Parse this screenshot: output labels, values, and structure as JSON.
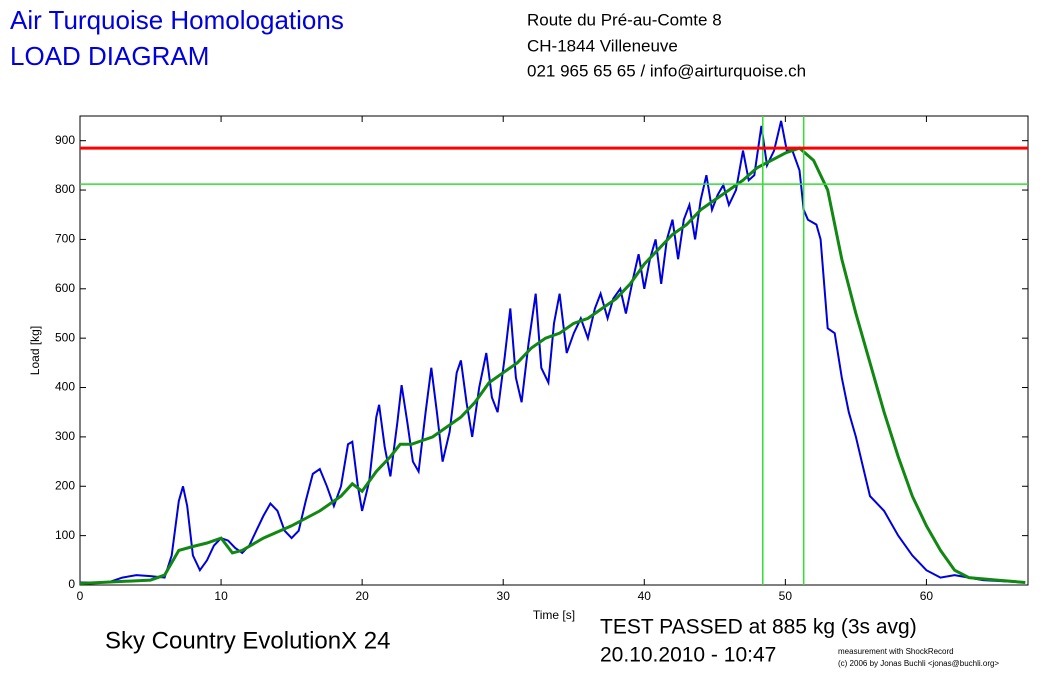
{
  "header": {
    "title": [
      "Air Turquoise Homologations",
      "LOAD DIAGRAM"
    ],
    "address": [
      "Route du Pré-au-Comte 8",
      "CH-1844 Villeneuve",
      "021 965 65 65 / info@airturquoise.ch"
    ]
  },
  "footer": {
    "product": "Sky Country EvolutionX 24",
    "result": "TEST PASSED at 885 kg (3s avg)",
    "date": "20.10.2010 - 10:47",
    "credit": [
      "measurement with ShockRecord",
      "(c) 2006 by Jonas Buchli <jonas@buchli.org>"
    ]
  },
  "chart_data": {
    "type": "line",
    "xlabel": "Time [s]",
    "ylabel": "Load [kg]",
    "xlim": [
      0,
      67.2
    ],
    "ylim": [
      0,
      950
    ],
    "xticks": [
      0,
      10,
      20,
      30,
      40,
      50,
      60
    ],
    "yticks": [
      0,
      100,
      200,
      300,
      400,
      500,
      600,
      700,
      800,
      900
    ],
    "grid": false,
    "hlines": [
      {
        "value": 885,
        "color": "#ff0000"
      },
      {
        "value": 812,
        "color": "#33dd33"
      }
    ],
    "vlines": [
      {
        "value": 48.4,
        "color": "#33dd33"
      },
      {
        "value": 51.3,
        "color": "#33dd33"
      }
    ],
    "series": [
      {
        "color": "#0000dd",
        "x": [
          0,
          2,
          3,
          4,
          5,
          6,
          6.5,
          7,
          7.3,
          7.6,
          8,
          8.5,
          9,
          9.5,
          10,
          10.5,
          11,
          11.5,
          12,
          12.5,
          13,
          13.5,
          14,
          14.5,
          15,
          15.5,
          16,
          16.5,
          17,
          17.5,
          18,
          18.5,
          19,
          19.3,
          19.7,
          20,
          20.5,
          21,
          21.2,
          21.6,
          22,
          22.5,
          22.8,
          23.2,
          23.6,
          24,
          24.5,
          24.9,
          25.3,
          25.7,
          26.2,
          26.7,
          27,
          27.4,
          27.8,
          28.3,
          28.8,
          29.2,
          29.6,
          30.1,
          30.5,
          30.9,
          31.3,
          31.8,
          32.3,
          32.7,
          33.2,
          33.6,
          34,
          34.5,
          35,
          35.5,
          36,
          36.5,
          36.9,
          37.4,
          37.8,
          38.3,
          38.7,
          39.2,
          39.6,
          40,
          40.4,
          40.8,
          41.2,
          41.6,
          42,
          42.4,
          42.8,
          43.2,
          43.6,
          44,
          44.4,
          44.8,
          45.2,
          45.6,
          46,
          46.5,
          47,
          47.4,
          47.8,
          48.3,
          48.7,
          49.2,
          49.7,
          50.1,
          50.5,
          51,
          51.3,
          51.6,
          52.2,
          52.5,
          53,
          53.5,
          54,
          54.5,
          55,
          55.5,
          56,
          57,
          58,
          59,
          60,
          61,
          62,
          63,
          64,
          67
        ],
        "values": [
          5,
          5,
          15,
          20,
          18,
          15,
          60,
          170,
          200,
          160,
          60,
          30,
          50,
          80,
          95,
          90,
          75,
          65,
          80,
          110,
          140,
          165,
          150,
          110,
          95,
          110,
          170,
          225,
          235,
          200,
          160,
          200,
          285,
          290,
          200,
          150,
          210,
          340,
          365,
          280,
          220,
          330,
          405,
          330,
          250,
          230,
          350,
          440,
          350,
          250,
          310,
          430,
          455,
          370,
          300,
          400,
          470,
          380,
          350,
          460,
          560,
          420,
          370,
          490,
          590,
          440,
          410,
          530,
          590,
          470,
          510,
          540,
          500,
          560,
          590,
          540,
          580,
          600,
          550,
          620,
          670,
          600,
          660,
          700,
          610,
          700,
          740,
          660,
          740,
          770,
          700,
          780,
          830,
          760,
          790,
          810,
          770,
          800,
          880,
          820,
          830,
          930,
          850,
          880,
          940,
          880,
          880,
          840,
          760,
          740,
          730,
          700,
          520,
          510,
          420,
          350,
          300,
          240,
          180,
          150,
          100,
          60,
          30,
          15,
          20,
          15,
          10,
          5
        ]
      },
      {
        "color": "#118811",
        "x": [
          0,
          5,
          6,
          7,
          8,
          9,
          10,
          10.8,
          11.5,
          13,
          15,
          17,
          18.5,
          19.3,
          20,
          21,
          22,
          22.7,
          23.5,
          25,
          27,
          28,
          29,
          30,
          31,
          32,
          33,
          34,
          35,
          36,
          37,
          38,
          39,
          40,
          41,
          42,
          43,
          44,
          45,
          46,
          47,
          48,
          49,
          50,
          51,
          52,
          53,
          54,
          55,
          56,
          57,
          58,
          59,
          60,
          61,
          62,
          63,
          65,
          67
        ],
        "values": [
          3,
          10,
          20,
          70,
          78,
          85,
          95,
          65,
          70,
          95,
          120,
          150,
          180,
          205,
          190,
          230,
          260,
          285,
          285,
          300,
          340,
          370,
          410,
          430,
          450,
          480,
          500,
          510,
          530,
          540,
          560,
          580,
          610,
          650,
          680,
          710,
          730,
          760,
          780,
          800,
          820,
          845,
          860,
          875,
          885,
          860,
          800,
          660,
          550,
          450,
          350,
          260,
          180,
          120,
          70,
          30,
          15,
          10,
          5
        ]
      }
    ]
  }
}
